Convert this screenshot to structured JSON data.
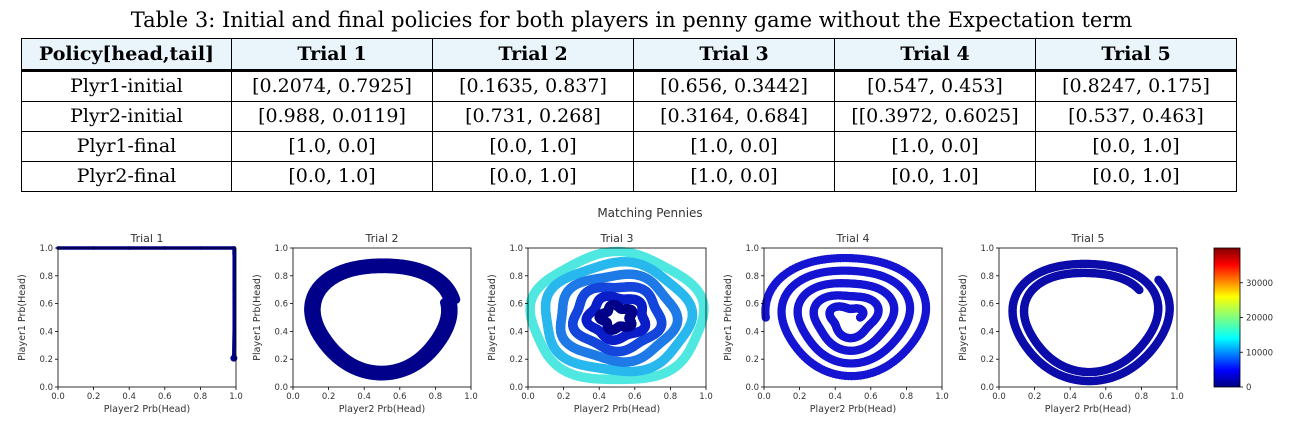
{
  "table": {
    "caption": "Table 3: Initial and final policies for both players in penny game without the Expectation term",
    "headers": [
      "Policy[head,tail]",
      "Trial 1",
      "Trial 2",
      "Trial 3",
      "Trial 4",
      "Trial 5"
    ],
    "rows": [
      {
        "label": "Plyr1-initial",
        "cells": [
          "[0.2074, 0.7925]",
          "[0.1635, 0.837]",
          "[0.656, 0.3442]",
          "[0.547, 0.453]",
          "[0.8247, 0.175]"
        ]
      },
      {
        "label": "Plyr2-initial",
        "cells": [
          "[0.988, 0.0119]",
          "[0.731, 0.268]",
          "[0.3164, 0.684]",
          "[[0.3972, 0.6025]",
          "[0.537, 0.463]"
        ]
      },
      {
        "label": "Plyr1-final",
        "cells": [
          "[1.0, 0.0]",
          "[0.0, 1.0]",
          "[1.0, 0.0]",
          "[1.0, 0.0]",
          "[0.0, 1.0]"
        ]
      },
      {
        "label": "Plyr2-final",
        "cells": [
          "[0.0, 1.0]",
          "[0.0, 1.0]",
          "[1.0, 0.0]",
          "[0.0, 1.0]",
          "[0.0, 1.0]"
        ]
      }
    ]
  },
  "figure": {
    "suptitle": "Matching Pennies",
    "xlabel": "Player2 Prb(Head)",
    "ylabel": "Player1 Prb(Head)",
    "ticks": [
      "0.0",
      "0.2",
      "0.4",
      "0.6",
      "0.8",
      "1.0"
    ],
    "colorbar_ticks": [
      "0",
      "10000",
      "20000",
      "30000"
    ]
  },
  "chart_data": [
    {
      "type": "scatter",
      "title": "Trial 1",
      "xlabel": "Player2 Prb(Head)",
      "ylabel": "Player1 Prb(Head)",
      "xlim": [
        0,
        1
      ],
      "ylim": [
        0,
        1
      ],
      "color": "#00008b",
      "trajectory": [
        [
          0.988,
          0.2074
        ],
        [
          0.99,
          0.4
        ],
        [
          0.99,
          0.7
        ],
        [
          0.99,
          0.95
        ],
        [
          0.99,
          1.0
        ],
        [
          0.8,
          1.0
        ],
        [
          0.6,
          1.0
        ],
        [
          0.4,
          1.0
        ],
        [
          0.2,
          1.0
        ],
        [
          0.0,
          1.0
        ]
      ]
    },
    {
      "type": "scatter",
      "title": "Trial 2",
      "xlabel": "Player2 Prb(Head)",
      "ylabel": "Player1 Prb(Head)",
      "xlim": [
        0,
        1
      ],
      "ylim": [
        0,
        1
      ],
      "color": "#00008b",
      "spiral": {
        "cx": 0.5,
        "cy": 0.5,
        "r_start": 0.42,
        "r_end": 0.35,
        "turns": 3,
        "phase": 0.3
      }
    },
    {
      "type": "scatter",
      "title": "Trial 3",
      "xlabel": "Player2 Prb(Head)",
      "ylabel": "Player1 Prb(Head)",
      "xlim": [
        0,
        1
      ],
      "ylim": [
        0,
        1
      ],
      "colors": [
        "#4fe8e0",
        "#28b8ee",
        "#1e7ae6",
        "#1446dc",
        "#0a1ec8",
        "#000088"
      ],
      "rings": [
        0.46,
        0.39,
        0.31,
        0.23,
        0.15,
        0.08
      ]
    },
    {
      "type": "scatter",
      "title": "Trial 4",
      "xlabel": "Player2 Prb(Head)",
      "ylabel": "Player1 Prb(Head)",
      "xlim": [
        0,
        1
      ],
      "ylim": [
        0,
        1
      ],
      "color": "#1414d2",
      "spiral": {
        "cx": 0.48,
        "cy": 0.5,
        "r_start": 0.06,
        "r_end": 0.47,
        "turns": 4.5,
        "phase": 0.0
      }
    },
    {
      "type": "scatter",
      "title": "Trial 5",
      "xlabel": "Player2 Prb(Head)",
      "ylabel": "Player1 Prb(Head)",
      "xlim": [
        0,
        1
      ],
      "ylim": [
        0,
        1
      ],
      "color": "#0c0caa",
      "spiral": {
        "cx": 0.5,
        "cy": 0.5,
        "r_start": 0.33,
        "r_end": 0.46,
        "turns": 2,
        "phase": 0.6
      }
    }
  ],
  "colorbar": {
    "min": 0,
    "max": 40000,
    "ticks": [
      0,
      10000,
      20000,
      30000
    ],
    "colormap": "jet"
  }
}
